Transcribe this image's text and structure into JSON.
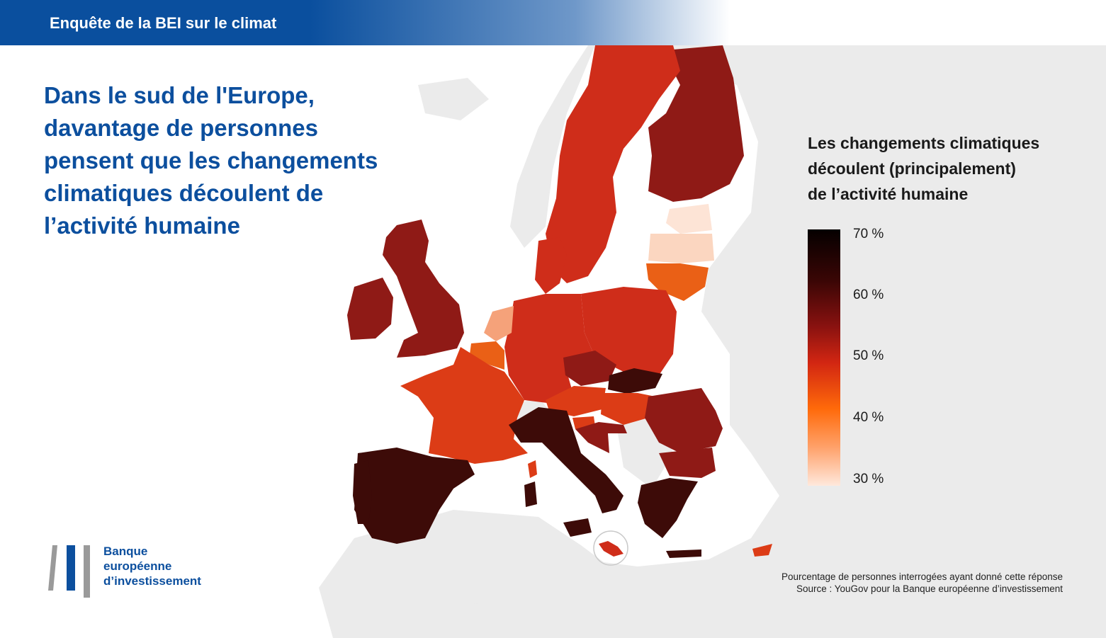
{
  "header": {
    "title": "Enquête de la BEI sur le climat"
  },
  "headline": "Dans le sud de l'Europe,\ndavantage de personnes\npensent que les changements\nclimatiques découlent de\nl’activité humaine",
  "legend": {
    "title": "Les changements climatiques\ndécoulent (principalement)\nde l’activité humaine",
    "ticks": [
      "70 %",
      "60 %",
      "50 %",
      "40 %",
      "30 %"
    ],
    "range": [
      30,
      70
    ]
  },
  "footnote": {
    "line1": "Pourcentage de personnes interrogées ayant donné cette réponse",
    "line2": "Source : YouGov pour la Banque européenne d’investissement"
  },
  "logo": {
    "line1": "Banque",
    "line2": "européenne",
    "line3": "d’investissement",
    "bar_gray": "#9a9a9a",
    "bar_blue": "#0c4f9e"
  },
  "colors": {
    "background_land": "#ebebeb",
    "very_dark": "#3d0b08",
    "dark_red": "#8f1a16",
    "red": "#cf2d1a",
    "red_orange": "#dc3c16",
    "orange": "#ea6016",
    "light_orange": "#f5a27a",
    "pale": "#fbd6c0",
    "very_pale": "#fde4d6"
  },
  "countries": [
    {
      "name": "Espagne",
      "tone": "very_dark"
    },
    {
      "name": "Italie",
      "tone": "very_dark"
    },
    {
      "name": "Grèce",
      "tone": "very_dark"
    },
    {
      "name": "Slovaquie",
      "tone": "very_dark"
    },
    {
      "name": "Portugal",
      "tone": "very_dark"
    },
    {
      "name": "Royaume-Uni",
      "tone": "dark_red"
    },
    {
      "name": "Irlande",
      "tone": "dark_red"
    },
    {
      "name": "Finlande",
      "tone": "dark_red"
    },
    {
      "name": "Roumanie",
      "tone": "dark_red"
    },
    {
      "name": "Bulgarie",
      "tone": "dark_red"
    },
    {
      "name": "Tchéquie",
      "tone": "dark_red"
    },
    {
      "name": "Croatie",
      "tone": "dark_red"
    },
    {
      "name": "Suède",
      "tone": "red"
    },
    {
      "name": "Pologne",
      "tone": "red"
    },
    {
      "name": "Allemagne",
      "tone": "red"
    },
    {
      "name": "Danemark",
      "tone": "red"
    },
    {
      "name": "Malte",
      "tone": "red"
    },
    {
      "name": "France",
      "tone": "red_orange"
    },
    {
      "name": "Autriche",
      "tone": "red_orange"
    },
    {
      "name": "Hongrie",
      "tone": "red_orange"
    },
    {
      "name": "Slovénie",
      "tone": "red_orange"
    },
    {
      "name": "Chypre",
      "tone": "red_orange"
    },
    {
      "name": "Belgique",
      "tone": "orange"
    },
    {
      "name": "Lituanie",
      "tone": "orange"
    },
    {
      "name": "Pays-Bas",
      "tone": "light_orange"
    },
    {
      "name": "Lettonie",
      "tone": "pale"
    },
    {
      "name": "Estonie",
      "tone": "very_pale"
    }
  ]
}
